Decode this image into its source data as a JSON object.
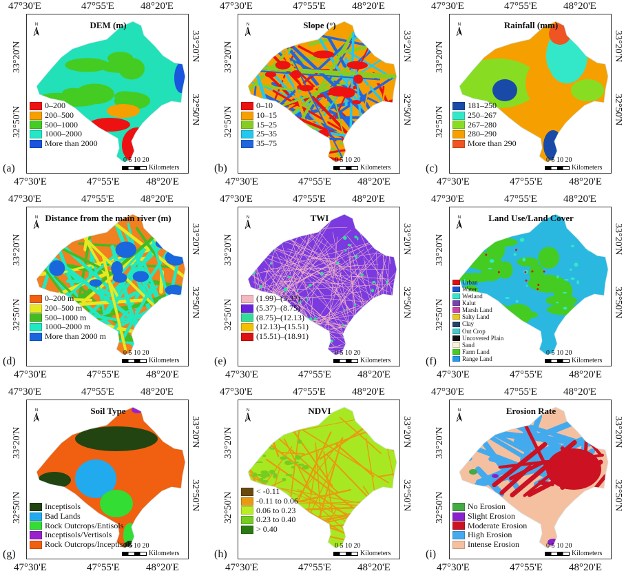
{
  "coords": {
    "lon": [
      "47°30'E",
      "47°55'E",
      "48°20'E"
    ],
    "lat": [
      "33°20'N",
      "32°50'N"
    ]
  },
  "scale": {
    "ticks": "0 5 10   20",
    "unit": "Kilometers"
  },
  "colors": {
    "boundary": "#d8e8ee",
    "frame": "#333333"
  },
  "panels": [
    {
      "id": "a",
      "label": "(a)",
      "title": "DEM (m)",
      "fill": "#22e0b8",
      "texture": "green-patches",
      "legend": [
        {
          "label": "0–200",
          "color": "#ee1111"
        },
        {
          "label": "200–500",
          "color": "#f5a000"
        },
        {
          "label": "500–1000",
          "color": "#44cc22"
        },
        {
          "label": "1000–2000",
          "color": "#22e8c8"
        },
        {
          "label": "More than 2000",
          "color": "#1a55dd"
        }
      ]
    },
    {
      "id": "b",
      "label": "(b)",
      "title": "Slope (°)",
      "fill": "#f5a000",
      "texture": "mixed",
      "legend": [
        {
          "label": "0–10",
          "color": "#ee1111"
        },
        {
          "label": "10–15",
          "color": "#f5a000"
        },
        {
          "label": "15–25",
          "color": "#88cc22"
        },
        {
          "label": "25–35",
          "color": "#22c8ee"
        },
        {
          "label": "35–75",
          "color": "#2266dd"
        }
      ]
    },
    {
      "id": "c",
      "label": "(c)",
      "title": "Rainfall (mm)",
      "fill": "#f5a000",
      "texture": "zones",
      "legend": [
        {
          "label": "181–250",
          "color": "#1a4aa8"
        },
        {
          "label": "250–267",
          "color": "#33e8c8"
        },
        {
          "label": "267–280",
          "color": "#88dd22"
        },
        {
          "label": "280–290",
          "color": "#f5a000"
        },
        {
          "label": "More than 290",
          "color": "#ee5522"
        }
      ]
    },
    {
      "id": "d",
      "label": "(d)",
      "title": "Distance from the main river (m)",
      "fill": "#f08020",
      "texture": "rivers",
      "legend": [
        {
          "label": "0–200 m",
          "color": "#f06010"
        },
        {
          "label": "200–500 m",
          "color": "#e8e820"
        },
        {
          "label": "500–1000 m",
          "color": "#44bb22"
        },
        {
          "label": "1000–2000 m",
          "color": "#22e8c0"
        },
        {
          "label": "More than 2000 m",
          "color": "#1a66dd"
        }
      ]
    },
    {
      "id": "e",
      "label": "(e)",
      "title": "TWI",
      "fill": "#7a3ae0",
      "texture": "speckle",
      "legend": [
        {
          "label": "(1.99)–(5.37)",
          "color": "#f4b8c0"
        },
        {
          "label": "(5.37)–(8.75)",
          "color": "#6a22dd"
        },
        {
          "label": "(8.75)–(12.13)",
          "color": "#33dd99"
        },
        {
          "label": "(12.13)–(15.51)",
          "color": "#f5c000"
        },
        {
          "label": "(15.51)–(18.91)",
          "color": "#dd1111"
        }
      ]
    },
    {
      "id": "f",
      "label": "(f)",
      "title": "Land Use/Land Cover",
      "fill": "#2ab8e0",
      "texture": "landuse",
      "legend": [
        {
          "label": "Urban",
          "color": "#dd1111"
        },
        {
          "label": "Water",
          "color": "#1a55cc"
        },
        {
          "label": "Wetland",
          "color": "#33e8c8"
        },
        {
          "label": "Kalut",
          "color": "#7744aa"
        },
        {
          "label": "Marsh Land",
          "color": "#cc44aa"
        },
        {
          "label": "Salty Land",
          "color": "#e8c822"
        },
        {
          "label": "Clay",
          "color": "#224466"
        },
        {
          "label": "Out Crop",
          "color": "#44cccc"
        },
        {
          "label": "Uncovered Plain",
          "color": "#111111"
        },
        {
          "label": "Sand",
          "color": "#f8f0d8"
        },
        {
          "label": "Farm Land",
          "color": "#44cc22"
        },
        {
          "label": "Range Land",
          "color": "#2299ee"
        }
      ]
    },
    {
      "id": "g",
      "label": "(g)",
      "title": "Soil Type",
      "fill": "#f06010",
      "texture": "soil",
      "legend": [
        {
          "label": "Inceptisols",
          "color": "#224411"
        },
        {
          "label": "Bad Lands",
          "color": "#22aaee"
        },
        {
          "label": "Rock Outcrops/Entisols",
          "color": "#33dd33"
        },
        {
          "label": "Inceptisols/Vertisols",
          "color": "#9922cc"
        },
        {
          "label": "Rock Outcrops/Inceptisols",
          "color": "#f06010"
        }
      ]
    },
    {
      "id": "h",
      "label": "(h)",
      "title": "NDVI",
      "fill": "#a8e822",
      "texture": "ndvi",
      "legend": [
        {
          "label": "< -0.11",
          "color": "#6a4a10"
        },
        {
          "label": "-0.11 to 0.06",
          "color": "#e89a10"
        },
        {
          "label": "0.06 to 0.23",
          "color": "#bbee22"
        },
        {
          "label": "0.23 to 0.40",
          "color": "#77cc22"
        },
        {
          "label": "> 0.40",
          "color": "#2a7a10"
        }
      ]
    },
    {
      "id": "i",
      "label": "(i)",
      "title": "Erosion Rate",
      "fill": "#f4c0a0",
      "texture": "erosion",
      "legend": [
        {
          "label": "No Erosion",
          "color": "#44aa44"
        },
        {
          "label": "Slight Erosion",
          "color": "#8822cc"
        },
        {
          "label": "Moderate Erosion",
          "color": "#cc1122"
        },
        {
          "label": "High Erosion",
          "color": "#44aaee"
        },
        {
          "label": "Intense Erosion",
          "color": "#f4c0a0"
        }
      ]
    }
  ]
}
